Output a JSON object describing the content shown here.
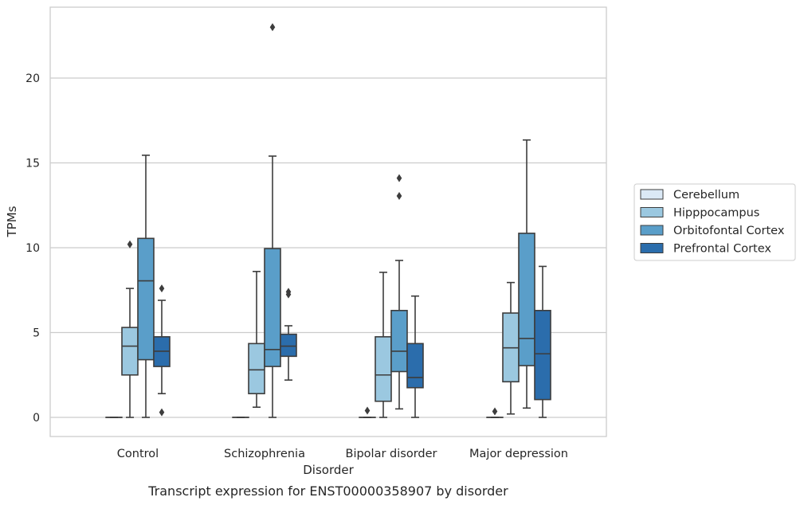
{
  "chart_data": {
    "type": "boxplot",
    "title": "",
    "caption": "Transcript expression for ENST00000358907 by disorder",
    "xlabel": "Disorder",
    "ylabel": "TPMs",
    "ylim": [
      -1.1,
      24.2
    ],
    "yticks": [
      0,
      5,
      10,
      15,
      20
    ],
    "grid": "horizontal",
    "legend_position": "right",
    "categories": [
      "Control",
      "Schizophrenia",
      "Bipolar disorder",
      "Major depression"
    ],
    "series": [
      {
        "name": "Cerebellum",
        "color": "#dbe9f6",
        "boxes": [
          {
            "q1": 0,
            "median": 0,
            "q3": 0,
            "whisker_low": 0,
            "whisker_high": 0,
            "outliers": []
          },
          {
            "q1": 0,
            "median": 0,
            "q3": 0,
            "whisker_low": 0,
            "whisker_high": 0,
            "outliers": []
          },
          {
            "q1": 0,
            "median": 0,
            "q3": 0,
            "whisker_low": 0,
            "whisker_high": 0,
            "outliers": [
              0.4
            ]
          },
          {
            "q1": 0,
            "median": 0,
            "q3": 0,
            "whisker_low": 0,
            "whisker_high": 0,
            "outliers": [
              0.35
            ]
          }
        ]
      },
      {
        "name": "Hipppocampus",
        "color": "#9bc8e0",
        "boxes": [
          {
            "q1": 2.5,
            "median": 4.2,
            "q3": 5.3,
            "whisker_low": 0,
            "whisker_high": 7.6,
            "outliers": [
              10.2
            ]
          },
          {
            "q1": 1.4,
            "median": 2.8,
            "q3": 4.35,
            "whisker_low": 0.6,
            "whisker_high": 8.6,
            "outliers": []
          },
          {
            "q1": 0.95,
            "median": 2.5,
            "q3": 4.75,
            "whisker_low": 0,
            "whisker_high": 8.55,
            "outliers": []
          },
          {
            "q1": 2.1,
            "median": 4.1,
            "q3": 6.15,
            "whisker_low": 0.2,
            "whisker_high": 7.95,
            "outliers": []
          }
        ]
      },
      {
        "name": "Orbitofontal Cortex",
        "color": "#5a9ec9",
        "boxes": [
          {
            "q1": 3.4,
            "median": 8.05,
            "q3": 10.55,
            "whisker_low": 0,
            "whisker_high": 15.45,
            "outliers": []
          },
          {
            "q1": 3.0,
            "median": 4.0,
            "q3": 9.95,
            "whisker_low": 0,
            "whisker_high": 15.4,
            "outliers": [
              23.0
            ]
          },
          {
            "q1": 2.7,
            "median": 3.9,
            "q3": 6.3,
            "whisker_low": 0.5,
            "whisker_high": 9.25,
            "outliers": [
              14.1,
              13.05
            ]
          },
          {
            "q1": 3.05,
            "median": 4.65,
            "q3": 10.85,
            "whisker_low": 0.55,
            "whisker_high": 16.35,
            "outliers": []
          }
        ]
      },
      {
        "name": "Prefrontal Cortex",
        "color": "#2b6dac",
        "boxes": [
          {
            "q1": 3.0,
            "median": 3.9,
            "q3": 4.75,
            "whisker_low": 1.4,
            "whisker_high": 6.9,
            "outliers": [
              7.6,
              0.3
            ]
          },
          {
            "q1": 3.6,
            "median": 4.2,
            "q3": 4.9,
            "whisker_low": 2.2,
            "whisker_high": 5.4,
            "outliers": [
              7.4,
              7.25
            ]
          },
          {
            "q1": 1.75,
            "median": 2.35,
            "q3": 4.35,
            "whisker_low": 0,
            "whisker_high": 7.15,
            "outliers": []
          },
          {
            "q1": 1.05,
            "median": 3.75,
            "q3": 6.3,
            "whisker_low": 0,
            "whisker_high": 8.9,
            "outliers": []
          }
        ]
      }
    ]
  }
}
